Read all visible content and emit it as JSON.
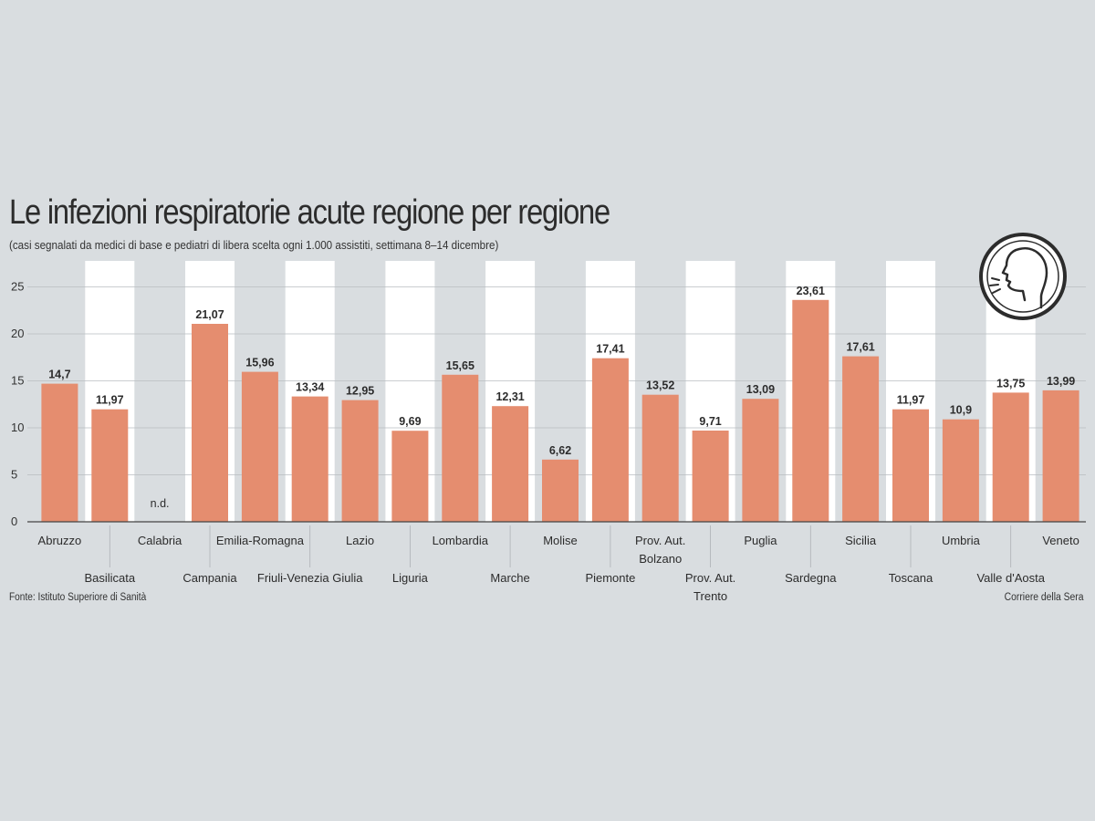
{
  "chart_data": {
    "type": "bar",
    "title": "Le infezioni respiratorie acute regione per regione",
    "subtitle": "(casi segnalati da medici di base e pediatri di libera scelta ogni 1.000 assistiti, settimana 8–14 dicembre)",
    "xlabel": "",
    "ylabel": "",
    "ylim": [
      0,
      25
    ],
    "yticks": [
      "0",
      "5",
      "10",
      "15",
      "20",
      "25"
    ],
    "grid": true,
    "categories": [
      {
        "lines": [
          "Abruzzo"
        ],
        "row": 0
      },
      {
        "lines": [
          "Basilicata"
        ],
        "row": 1
      },
      {
        "lines": [
          "Calabria"
        ],
        "row": 0
      },
      {
        "lines": [
          "Campania"
        ],
        "row": 1
      },
      {
        "lines": [
          "Emilia-Romagna"
        ],
        "row": 0
      },
      {
        "lines": [
          "Friuli-Venezia Giulia"
        ],
        "row": 1
      },
      {
        "lines": [
          "Lazio"
        ],
        "row": 0
      },
      {
        "lines": [
          "Liguria"
        ],
        "row": 1
      },
      {
        "lines": [
          "Lombardia"
        ],
        "row": 0
      },
      {
        "lines": [
          "Marche"
        ],
        "row": 1
      },
      {
        "lines": [
          "Molise"
        ],
        "row": 0
      },
      {
        "lines": [
          "Piemonte"
        ],
        "row": 1
      },
      {
        "lines": [
          "Prov. Aut.",
          "Bolzano"
        ],
        "row": 0
      },
      {
        "lines": [
          "Prov. Aut.",
          "Trento"
        ],
        "row": 1
      },
      {
        "lines": [
          "Puglia"
        ],
        "row": 0
      },
      {
        "lines": [
          "Sardegna"
        ],
        "row": 1
      },
      {
        "lines": [
          "Sicilia"
        ],
        "row": 0
      },
      {
        "lines": [
          "Toscana"
        ],
        "row": 1
      },
      {
        "lines": [
          "Umbria"
        ],
        "row": 0
      },
      {
        "lines": [
          "Valle d'Aosta"
        ],
        "row": 1
      },
      {
        "lines": [
          "Veneto"
        ],
        "row": 0
      }
    ],
    "values": [
      14.7,
      11.97,
      null,
      21.07,
      15.96,
      13.34,
      12.95,
      9.69,
      15.65,
      12.31,
      6.62,
      17.41,
      13.52,
      9.71,
      13.09,
      23.61,
      17.61,
      11.97,
      10.9,
      13.75,
      13.99
    ],
    "value_labels": [
      "14,7",
      "11,97",
      "n.d.",
      "21,07",
      "15,96",
      "13,34",
      "12,95",
      "9,69",
      "15,65",
      "12,31",
      "6,62",
      "17,41",
      "13,52",
      "9,71",
      "13,09",
      "23,61",
      "17,61",
      "11,97",
      "10,9",
      "13,75",
      "13,99"
    ]
  },
  "footer": {
    "source": "Fonte: Istituto Superiore di Sanità",
    "credit": "Corriere della Sera"
  },
  "colors": {
    "bar": "#e58d6f",
    "background": "#d9dde0",
    "band": "#ffffff",
    "text": "#2c2c2c"
  },
  "icon": "coughing-person-icon"
}
